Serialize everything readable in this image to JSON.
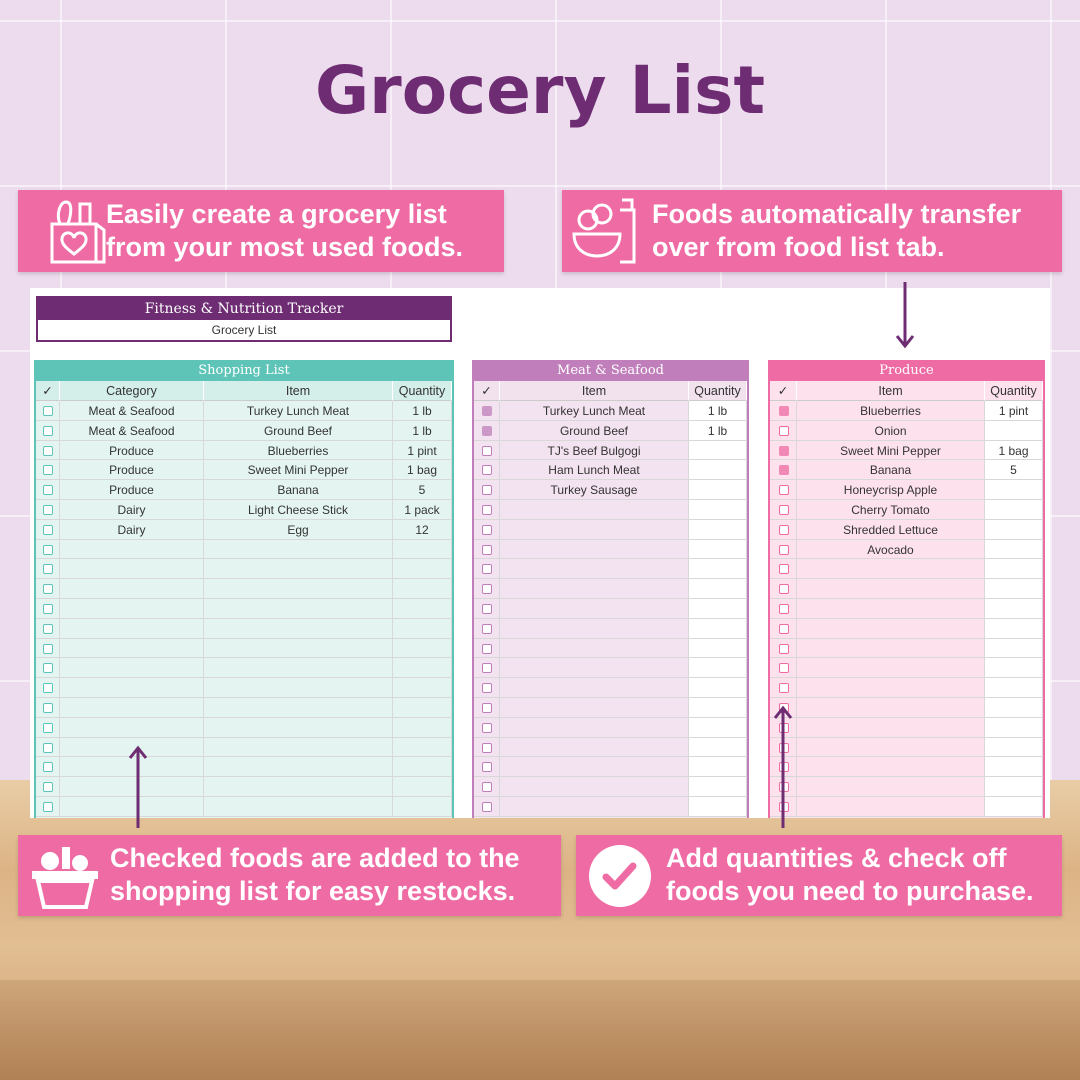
{
  "title": "Grocery List",
  "callouts": [
    "Easily create a grocery list from your most used foods.",
    "Foods automatically transfer over from food list tab.",
    "Checked foods are added to the shopping list for easy restocks.",
    "Add quantities & check off foods you need to purchase."
  ],
  "sheet": {
    "title": "Fitness & Nutrition Tracker",
    "subtitle": "Grocery List"
  },
  "tables": [
    {
      "title": "Shopping List",
      "columns": [
        "✓",
        "Category",
        "Item",
        "Quantity"
      ],
      "rows": [
        {
          "category": "Meat & Seafood",
          "item": "Turkey Lunch Meat",
          "quantity": "1 lb",
          "checked": false
        },
        {
          "category": "Meat & Seafood",
          "item": "Ground Beef",
          "quantity": "1 lb",
          "checked": false
        },
        {
          "category": "Produce",
          "item": "Blueberries",
          "quantity": "1 pint",
          "checked": false
        },
        {
          "category": "Produce",
          "item": "Sweet Mini Pepper",
          "quantity": "1 bag",
          "checked": false
        },
        {
          "category": "Produce",
          "item": "Banana",
          "quantity": "5",
          "checked": false
        },
        {
          "category": "Dairy",
          "item": "Light Cheese Stick",
          "quantity": "1 pack",
          "checked": false
        },
        {
          "category": "Dairy",
          "item": "Egg",
          "quantity": "12",
          "checked": false
        }
      ]
    },
    {
      "title": "Meat & Seafood",
      "columns": [
        "✓",
        "Item",
        "Quantity"
      ],
      "rows": [
        {
          "item": "Turkey Lunch Meat",
          "quantity": "1 lb",
          "checked": true
        },
        {
          "item": "Ground Beef",
          "quantity": "1 lb",
          "checked": true
        },
        {
          "item": "TJ's Beef Bulgogi",
          "checked": false
        },
        {
          "item": "Ham Lunch Meat",
          "checked": false
        },
        {
          "item": "Turkey Sausage",
          "checked": false
        }
      ]
    },
    {
      "title": "Produce",
      "columns": [
        "✓",
        "Item",
        "Quantity"
      ],
      "rows": [
        {
          "item": "Blueberries",
          "quantity": "1 pint",
          "checked": true
        },
        {
          "item": "Onion",
          "checked": false
        },
        {
          "item": "Sweet Mini Pepper",
          "quantity": "1 bag",
          "checked": true
        },
        {
          "item": "Banana",
          "quantity": "5",
          "checked": true
        },
        {
          "item": "Honeycrisp Apple",
          "checked": false
        },
        {
          "item": "Cherry Tomato",
          "checked": false
        },
        {
          "item": "Shredded Lettuce",
          "checked": false
        },
        {
          "item": "Avocado",
          "checked": false
        }
      ]
    }
  ]
}
